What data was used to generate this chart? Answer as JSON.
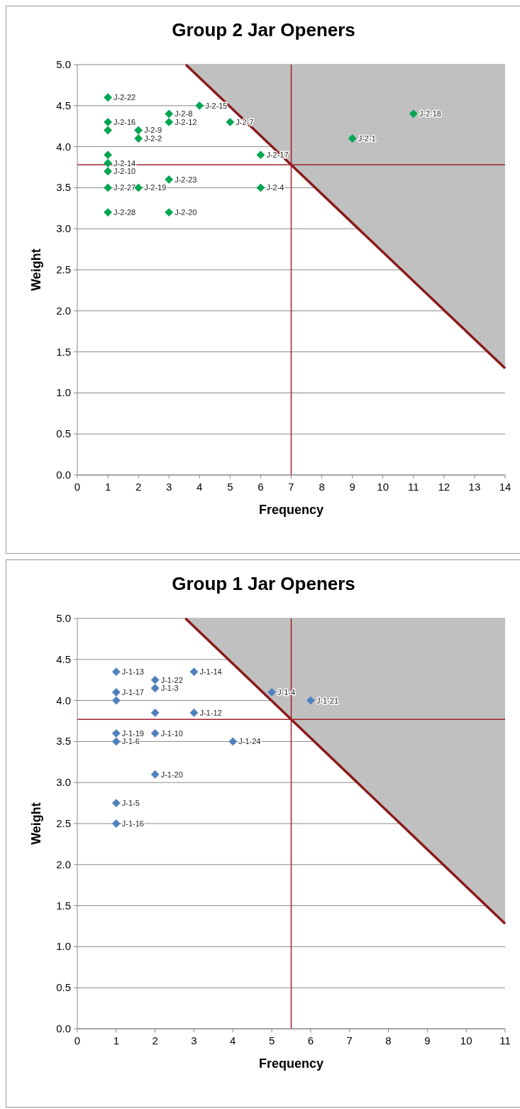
{
  "chart_data": [
    {
      "type": "scatter",
      "title": "Group 2 Jar Openers",
      "xlabel": "Frequency",
      "ylabel": "Weight",
      "xlim": [
        0,
        14
      ],
      "ylim": [
        0,
        5
      ],
      "xticks": [
        0,
        1,
        2,
        3,
        4,
        5,
        6,
        7,
        8,
        9,
        10,
        11,
        12,
        13,
        14
      ],
      "yticks": [
        {
          "value": 0,
          "label": "0.0"
        },
        {
          "value": 0.5,
          "label": "0.5"
        },
        {
          "value": 1,
          "label": "1.0"
        },
        {
          "value": 1.5,
          "label": "1.5"
        },
        {
          "value": 2,
          "label": "2.0"
        },
        {
          "value": 2.5,
          "label": "2.5"
        },
        {
          "value": 3,
          "label": "3.0"
        },
        {
          "value": 3.5,
          "label": "3.5"
        },
        {
          "value": 4,
          "label": "4.0"
        },
        {
          "value": 4.5,
          "label": "4.5"
        },
        {
          "value": 5,
          "label": "5.0"
        }
      ],
      "grid": "y",
      "marker": "diamond",
      "series": [
        {
          "color": "#00a651",
          "x": [
            1,
            1,
            1,
            1,
            1,
            1,
            1,
            1,
            2,
            2,
            2,
            3,
            3,
            3,
            3,
            4,
            5,
            6,
            6,
            9,
            11
          ],
          "values": [
            4.6,
            4.3,
            4.2,
            3.9,
            3.8,
            3.7,
            3.5,
            3.2,
            4.2,
            4.1,
            3.5,
            4.4,
            4.3,
            3.6,
            3.2,
            4.5,
            4.3,
            3.9,
            3.5,
            4.1,
            4.4
          ]
        },
        {
          "type": "line",
          "marker": "none",
          "color": "#8b1a1a",
          "x": [
            3.55,
            14
          ],
          "values": [
            5,
            1.3
          ],
          "lower": [
            5,
            1.3
          ],
          "upper": [
            5,
            5
          ]
        }
      ],
      "ref_lines": [
        {
          "axis": "x",
          "value": 7,
          "color": "#a0202a"
        },
        {
          "axis": "y",
          "value": 3.78,
          "color": "#a0202a"
        }
      ],
      "annotations": [
        {
          "text": "J-2-22",
          "x": 1,
          "y": 4.6
        },
        {
          "text": "J-2-16",
          "x": 1,
          "y": 4.3
        },
        {
          "text": "J-2-14",
          "x": 1,
          "y": 3.8
        },
        {
          "text": "J-2-10",
          "x": 1,
          "y": 3.7
        },
        {
          "text": "J-2-27",
          "x": 1,
          "y": 3.5
        },
        {
          "text": "J-2-28",
          "x": 1,
          "y": 3.2
        },
        {
          "text": "J-2-9",
          "x": 2,
          "y": 4.2
        },
        {
          "text": "J-2-2",
          "x": 2,
          "y": 4.1
        },
        {
          "text": "J-2-19",
          "x": 2,
          "y": 3.5
        },
        {
          "text": "J-2-8",
          "x": 3,
          "y": 4.4
        },
        {
          "text": "J-2-12",
          "x": 3,
          "y": 4.3
        },
        {
          "text": "J-2-23",
          "x": 3,
          "y": 3.6
        },
        {
          "text": "J-2-20",
          "x": 3,
          "y": 3.2
        },
        {
          "text": "J-2-15",
          "x": 4,
          "y": 4.5
        },
        {
          "text": "J-2-7",
          "x": 5,
          "y": 4.3
        },
        {
          "text": "J-2-17",
          "x": 6,
          "y": 3.9
        },
        {
          "text": "J-2-4",
          "x": 6,
          "y": 3.5
        },
        {
          "text": "J-2-1",
          "x": 9,
          "y": 4.1
        },
        {
          "text": "J-2-18",
          "x": 11,
          "y": 4.4
        }
      ]
    },
    {
      "type": "scatter",
      "title": "Group 1 Jar Openers",
      "xlabel": "Frequency",
      "ylabel": "Weight",
      "xlim": [
        0,
        11
      ],
      "ylim": [
        0,
        5
      ],
      "xticks": [
        0,
        1,
        2,
        3,
        4,
        5,
        6,
        7,
        8,
        9,
        10,
        11
      ],
      "yticks": [
        {
          "value": 0,
          "label": "0.0"
        },
        {
          "value": 0.5,
          "label": "0.5"
        },
        {
          "value": 1,
          "label": "1.0"
        },
        {
          "value": 1.5,
          "label": "1.5"
        },
        {
          "value": 2,
          "label": "2.0"
        },
        {
          "value": 2.5,
          "label": "2.5"
        },
        {
          "value": 3,
          "label": "3.0"
        },
        {
          "value": 3.5,
          "label": "3.5"
        },
        {
          "value": 4,
          "label": "4.0"
        },
        {
          "value": 4.5,
          "label": "4.5"
        },
        {
          "value": 5,
          "label": "5.0"
        }
      ],
      "grid": "y",
      "marker": "diamond",
      "series": [
        {
          "color": "#4f81bd",
          "x": [
            1,
            1,
            1,
            1,
            1,
            1,
            1,
            2,
            2,
            2,
            2,
            2,
            3,
            3,
            4,
            5,
            6
          ],
          "values": [
            4.35,
            4.1,
            4,
            3.6,
            3.5,
            2.75,
            2.5,
            4.25,
            4.15,
            3.85,
            3.6,
            3.1,
            4.35,
            3.85,
            3.5,
            4.1,
            4
          ]
        },
        {
          "type": "line",
          "marker": "none",
          "color": "#8b1a1a",
          "x": [
            2.78,
            11
          ],
          "values": [
            5,
            1.28
          ],
          "lower": [
            5,
            1.28
          ],
          "upper": [
            5,
            5
          ]
        }
      ],
      "ref_lines": [
        {
          "axis": "x",
          "value": 5.5,
          "color": "#a0202a"
        },
        {
          "axis": "y",
          "value": 3.77,
          "color": "#a0202a"
        }
      ],
      "annotations": [
        {
          "text": "J-1-13",
          "x": 1,
          "y": 4.35
        },
        {
          "text": "J-1-17",
          "x": 1,
          "y": 4.1
        },
        {
          "text": "J-1-19",
          "x": 1,
          "y": 3.6
        },
        {
          "text": "J-1-6",
          "x": 1,
          "y": 3.5
        },
        {
          "text": "J-1-5",
          "x": 1,
          "y": 2.75
        },
        {
          "text": "J-1-16",
          "x": 1,
          "y": 2.5
        },
        {
          "text": "J-1-22",
          "x": 2,
          "y": 4.25
        },
        {
          "text": "J-1-3",
          "x": 2,
          "y": 4.15
        },
        {
          "text": "J-1-10",
          "x": 2,
          "y": 3.6
        },
        {
          "text": "J-1-20",
          "x": 2,
          "y": 3.1
        },
        {
          "text": "J-1-14",
          "x": 3,
          "y": 4.35
        },
        {
          "text": "J-1-12",
          "x": 3,
          "y": 3.85
        },
        {
          "text": "J-1-24",
          "x": 4,
          "y": 3.5
        },
        {
          "text": "J-1-4",
          "x": 5,
          "y": 4.1
        },
        {
          "text": "J-1-21",
          "x": 6,
          "y": 4
        }
      ]
    }
  ]
}
